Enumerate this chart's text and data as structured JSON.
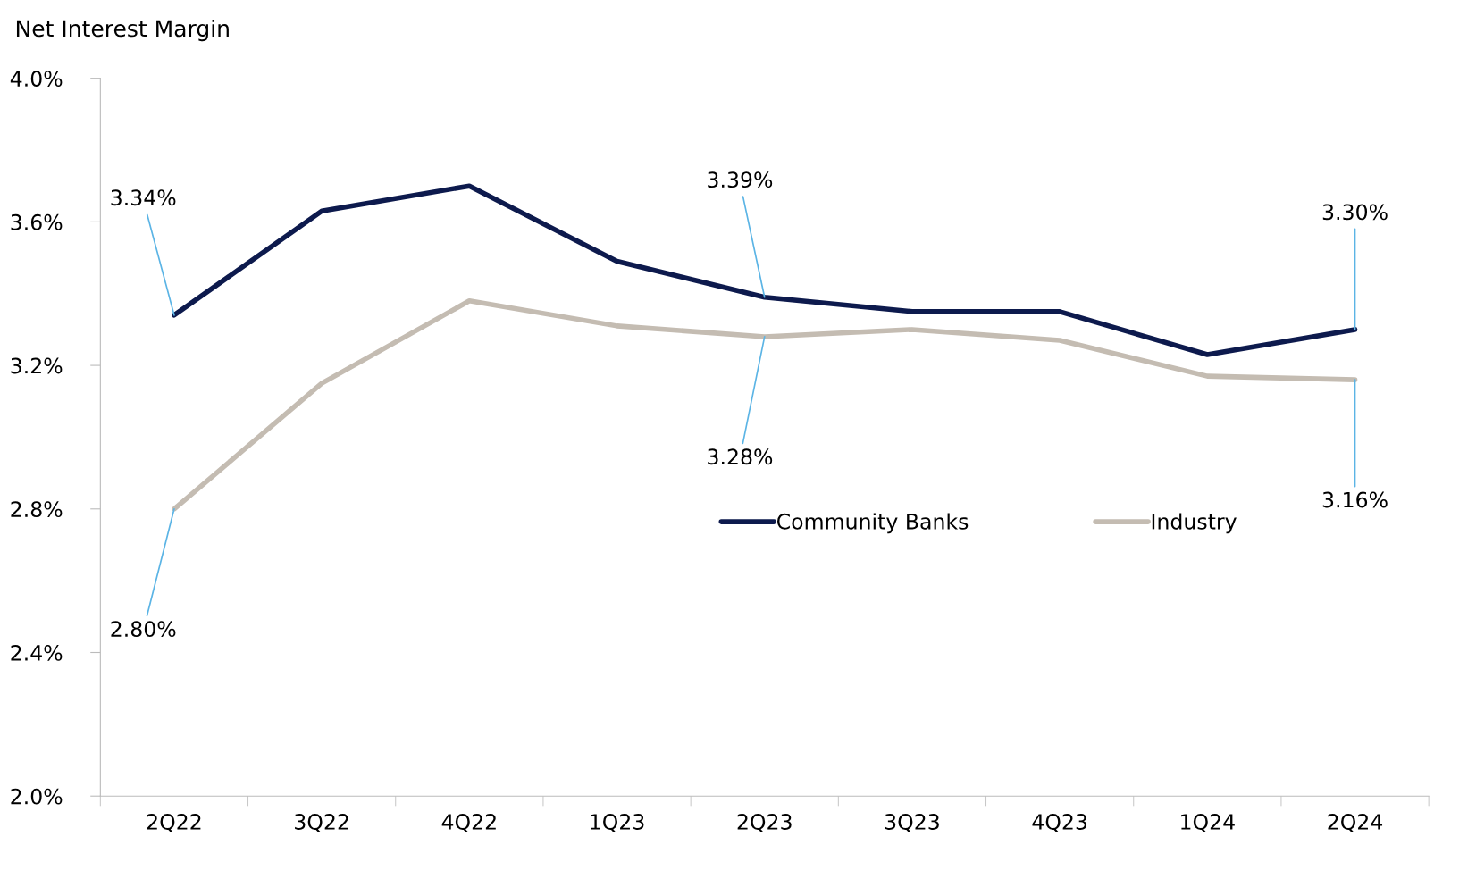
{
  "chart_data": {
    "type": "line",
    "title": "Net Interest Margin",
    "categories": [
      "2Q22",
      "3Q22",
      "4Q22",
      "1Q23",
      "2Q23",
      "3Q23",
      "4Q23",
      "1Q24",
      "2Q24"
    ],
    "series": [
      {
        "name": "Community Banks",
        "color": "#0d1a4d",
        "values": [
          3.34,
          3.63,
          3.7,
          3.49,
          3.39,
          3.35,
          3.35,
          3.23,
          3.3
        ]
      },
      {
        "name": "Industry",
        "color": "#c4bcb2",
        "values": [
          2.8,
          3.15,
          3.38,
          3.31,
          3.28,
          3.3,
          3.27,
          3.17,
          3.16
        ]
      }
    ],
    "ylim": [
      2.0,
      4.0
    ],
    "yticks": [
      {
        "value": 2.0,
        "label": "2.0%"
      },
      {
        "value": 2.4,
        "label": "2.4%"
      },
      {
        "value": 2.8,
        "label": "2.8%"
      },
      {
        "value": 3.2,
        "label": "3.2%"
      },
      {
        "value": 3.6,
        "label": "3.6%"
      },
      {
        "value": 4.0,
        "label": "4.0%"
      }
    ],
    "annotations": [
      {
        "text": "3.34%",
        "x": "2Q22",
        "y": 3.34
      },
      {
        "text": "2.80%",
        "x": "2Q22",
        "y": 2.8
      },
      {
        "text": "3.39%",
        "x": "2Q23",
        "y": 3.39
      },
      {
        "text": "3.28%",
        "x": "2Q23",
        "y": 3.28
      },
      {
        "text": "3.30%",
        "x": "2Q24",
        "y": 3.3
      },
      {
        "text": "3.16%",
        "x": "2Q24",
        "y": 3.16
      }
    ],
    "legend": "center right",
    "grid": false,
    "marker": "none",
    "line_style": "solid"
  }
}
